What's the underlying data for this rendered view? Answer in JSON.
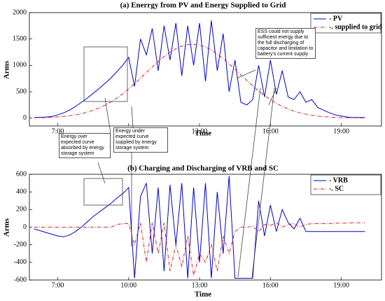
{
  "chart_data": [
    {
      "type": "line",
      "title": "(a) Enerrgy from PV and Energy Supplied to Grid",
      "xlabel": "Time",
      "ylabel": "Arms",
      "x": [
        6.0,
        6.25,
        6.5,
        6.75,
        7.0,
        7.25,
        7.5,
        7.75,
        8.0,
        8.25,
        8.5,
        8.75,
        9.0,
        9.25,
        9.5,
        9.75,
        10.0,
        10.25,
        10.5,
        10.75,
        11.0,
        11.25,
        11.5,
        11.75,
        12.0,
        12.25,
        12.5,
        12.75,
        13.0,
        13.25,
        13.5,
        13.75,
        14.0,
        14.25,
        14.5,
        14.75,
        15.0,
        15.25,
        15.5,
        15.75,
        16.0,
        16.25,
        16.5,
        16.75,
        17.0,
        17.25,
        17.5,
        17.75,
        18.0,
        18.25,
        18.5,
        18.75,
        19.0,
        19.25,
        19.5,
        19.75,
        20.0
      ],
      "series": [
        {
          "name": "- PV",
          "color": "#0000cc",
          "dash": "solid",
          "values": [
            10,
            15,
            20,
            30,
            60,
            100,
            150,
            220,
            300,
            380,
            470,
            560,
            660,
            760,
            880,
            1000,
            1150,
            600,
            1500,
            1200,
            1700,
            900,
            1750,
            1100,
            1800,
            800,
            1750,
            1000,
            1800,
            700,
            1850,
            900,
            1600,
            500,
            1100,
            300,
            250,
            350,
            1000,
            400,
            1100,
            450,
            900,
            400,
            350,
            500,
            300,
            350,
            200,
            150,
            100,
            60,
            40,
            20,
            10,
            10,
            10
          ]
        },
        {
          "name": "-. supplied to grid",
          "color": "#cc2222",
          "dash": "dashdot",
          "values": [
            5,
            7,
            10,
            15,
            22,
            32,
            45,
            61,
            84,
            112,
            148,
            191,
            244,
            307,
            379,
            461,
            552,
            651,
            755,
            862,
            968,
            1071,
            1165,
            1248,
            1315,
            1364,
            1393,
            1400,
            1384,
            1347,
            1290,
            1216,
            1128,
            1030,
            926,
            819,
            713,
            611,
            515,
            428,
            349,
            281,
            222,
            173,
            132,
            100,
            74,
            54,
            39,
            28,
            19,
            13,
            9,
            7,
            5,
            3,
            2
          ]
        }
      ],
      "xlim": [
        5.8,
        20.7
      ],
      "ylim": [
        -150,
        2000
      ],
      "xticks": [
        {
          "value": 7,
          "label": "7:00"
        },
        {
          "value": 10,
          "label": "10:00"
        },
        {
          "value": 13,
          "label": "13:00"
        },
        {
          "value": 16,
          "label": "16:00"
        },
        {
          "value": 19,
          "label": "19:00"
        }
      ],
      "yticks": [
        0,
        500,
        1000,
        1500,
        2000
      ],
      "grid": false,
      "legend": "upper right",
      "annotations": [
        "ESS could not supply sufficient energy due to the full discharging of capacitor and limitation to battery's current supply",
        "Energy over expected curve absorbed by energy storage system",
        "Energy under expected curve supplied by energy storage system"
      ]
    },
    {
      "type": "line",
      "title": "(b) Charging and Discharging of VRB and SC",
      "xlabel": "Time",
      "ylabel": "Arms",
      "x": [
        6.0,
        6.25,
        6.5,
        6.75,
        7.0,
        7.25,
        7.5,
        7.75,
        8.0,
        8.25,
        8.5,
        8.75,
        9.0,
        9.25,
        9.5,
        9.75,
        10.0,
        10.25,
        10.5,
        10.75,
        11.0,
        11.25,
        11.5,
        11.75,
        12.0,
        12.25,
        12.5,
        12.75,
        13.0,
        13.25,
        13.5,
        13.75,
        14.0,
        14.25,
        14.5,
        14.75,
        15.0,
        15.25,
        15.5,
        15.75,
        16.0,
        16.25,
        16.5,
        16.75,
        17.0,
        17.25,
        17.5,
        17.75,
        18.0,
        18.25,
        18.5,
        18.75,
        19.0,
        19.25,
        19.5,
        19.75,
        20.0
      ],
      "series": [
        {
          "name": "- VRB",
          "color": "#0000cc",
          "dash": "solid",
          "values": [
            -20,
            -40,
            -60,
            -80,
            -100,
            -110,
            -90,
            -50,
            0,
            60,
            120,
            170,
            220,
            270,
            330,
            380,
            450,
            -580,
            350,
            500,
            -300,
            450,
            -500,
            480,
            -200,
            500,
            -580,
            450,
            -400,
            500,
            -580,
            400,
            -300,
            580,
            -580,
            -580,
            -580,
            -580,
            300,
            -100,
            250,
            -50,
            200,
            50,
            -20,
            100,
            -50,
            -50,
            -50,
            -50,
            -50,
            -50,
            -50,
            -50,
            -50,
            -50,
            -50
          ]
        },
        {
          "name": "-. SC",
          "color": "#cc2222",
          "dash": "dashdot",
          "values": [
            0,
            0,
            0,
            0,
            0,
            0,
            0,
            0,
            0,
            0,
            0,
            0,
            0,
            0,
            30,
            40,
            40,
            -200,
            50,
            -400,
            50,
            -300,
            50,
            -500,
            -200,
            -450,
            -100,
            -550,
            -300,
            -400,
            -200,
            -500,
            -100,
            -300,
            -50,
            0,
            0,
            10,
            -50,
            30,
            20,
            50,
            0,
            30,
            40,
            0,
            30,
            40,
            40,
            40,
            40,
            45,
            45,
            45,
            50,
            50,
            50
          ]
        }
      ],
      "xlim": [
        5.8,
        20.7
      ],
      "ylim": [
        -600,
        600
      ],
      "xticks": [
        {
          "value": 7,
          "label": "7:00"
        },
        {
          "value": 10,
          "label": "10:00"
        },
        {
          "value": 13,
          "label": "13:00"
        },
        {
          "value": 16,
          "label": "16:00"
        },
        {
          "value": 19,
          "label": "19:00"
        }
      ],
      "yticks": [
        -600,
        -400,
        -200,
        0,
        200,
        400,
        600
      ],
      "grid": false,
      "legend": "upper right"
    }
  ]
}
